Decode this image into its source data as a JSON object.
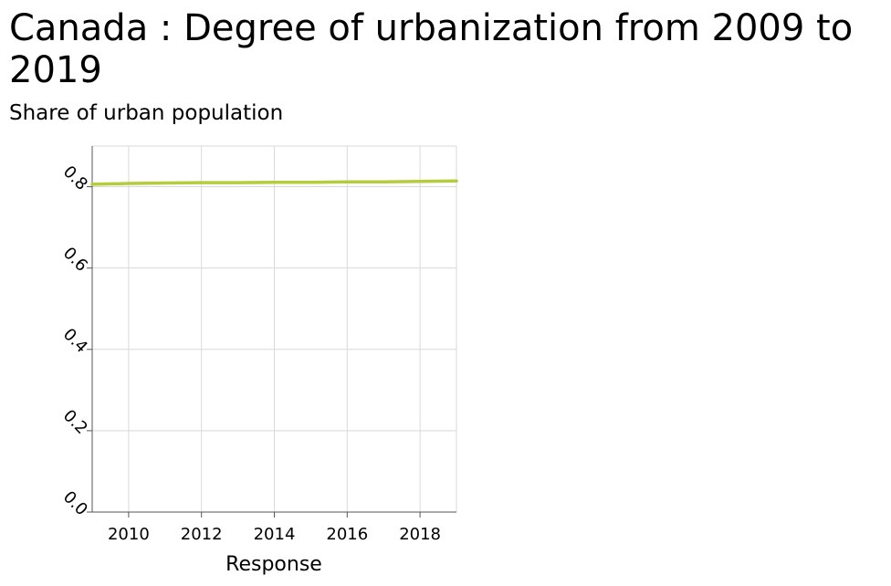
{
  "chart_data": {
    "type": "line",
    "title": "Canada : Degree of urbanization from 2009 to 2019",
    "ylabel": "Share of urban population",
    "xlabel": "Response",
    "x": [
      2009,
      2010,
      2011,
      2012,
      2013,
      2014,
      2015,
      2016,
      2017,
      2018,
      2019
    ],
    "series": [
      {
        "values": [
          0.806,
          0.808,
          0.809,
          0.81,
          0.81,
          0.811,
          0.811,
          0.812,
          0.812,
          0.813,
          0.814
        ]
      }
    ],
    "xlim": [
      2009,
      2019
    ],
    "ylim": [
      0,
      0.9
    ],
    "xticks": [
      "2010",
      "2012",
      "2014",
      "2016",
      "2018"
    ],
    "yticks": [
      "0.0",
      "0.2",
      "0.4",
      "0.6",
      "0.8"
    ],
    "grid": true,
    "line_color": "#b5cc3b"
  }
}
